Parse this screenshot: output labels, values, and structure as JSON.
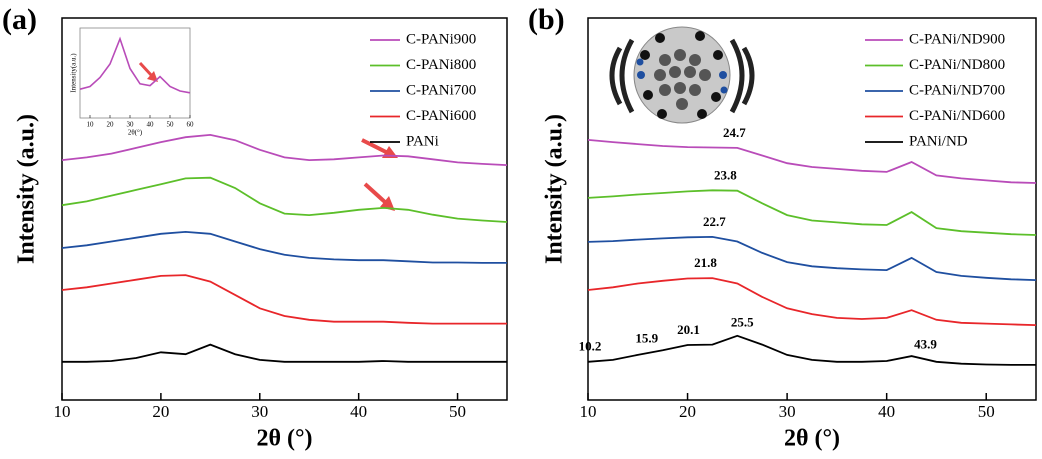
{
  "chart_data": [
    {
      "type": "line",
      "panel_label": "(a)",
      "xlabel": "2θ (°)",
      "ylabel": "Intensity (a.u.)",
      "xlim": [
        10,
        55
      ],
      "xticks": [
        10,
        20,
        30,
        40,
        50
      ],
      "ylim": [
        0,
        10
      ],
      "legend": "upper right",
      "x": [
        10,
        12.5,
        15,
        17.5,
        20,
        22.5,
        25,
        27.5,
        30,
        32.5,
        35,
        37.5,
        40,
        42.5,
        45,
        47.5,
        50,
        52.5,
        55
      ],
      "series": [
        {
          "name": "C-PANi900",
          "color": "#b94cb9",
          "values": [
            6.28,
            6.35,
            6.45,
            6.6,
            6.75,
            6.88,
            6.94,
            6.8,
            6.55,
            6.35,
            6.28,
            6.3,
            6.35,
            6.4,
            6.38,
            6.3,
            6.22,
            6.18,
            6.15
          ]
        },
        {
          "name": "C-PANi800",
          "color": "#5cbf2a",
          "values": [
            5.1,
            5.2,
            5.35,
            5.5,
            5.65,
            5.8,
            5.82,
            5.55,
            5.15,
            4.88,
            4.84,
            4.9,
            4.98,
            5.03,
            4.98,
            4.85,
            4.75,
            4.7,
            4.66
          ]
        },
        {
          "name": "C-PANi700",
          "color": "#1f4fa0",
          "values": [
            3.98,
            4.05,
            4.15,
            4.25,
            4.35,
            4.4,
            4.35,
            4.15,
            3.95,
            3.8,
            3.72,
            3.68,
            3.66,
            3.66,
            3.63,
            3.6,
            3.6,
            3.59,
            3.59
          ]
        },
        {
          "name": "C-PANi600",
          "color": "#e8262a",
          "values": [
            2.88,
            2.95,
            3.05,
            3.15,
            3.25,
            3.27,
            3.1,
            2.75,
            2.4,
            2.2,
            2.1,
            2.05,
            2.05,
            2.05,
            2.02,
            2.0,
            2.0,
            2.0,
            2.0
          ]
        },
        {
          "name": "PANi",
          "color": "#000000",
          "values": [
            1.0,
            1.0,
            1.02,
            1.1,
            1.25,
            1.2,
            1.45,
            1.2,
            1.05,
            1.0,
            1.0,
            1.0,
            1.0,
            1.02,
            1.0,
            1.0,
            1.0,
            1.0,
            1.0
          ]
        }
      ]
    },
    {
      "type": "line",
      "panel_label": "(b)",
      "xlabel": "2θ (°)",
      "ylabel": "Intensity (a.u.)",
      "xlim": [
        10,
        55
      ],
      "xticks": [
        10,
        20,
        30,
        40,
        50
      ],
      "ylim": [
        0,
        10
      ],
      "legend": "upper right",
      "x": [
        10,
        12.5,
        15,
        17.5,
        20,
        22.5,
        25,
        27.5,
        30,
        32.5,
        35,
        37.5,
        40,
        42.5,
        45,
        47.5,
        50,
        52.5,
        55
      ],
      "series": [
        {
          "name": "C-PANi/ND900",
          "color": "#b94cb9",
          "peaks": [
            24.7
          ],
          "values": [
            6.81,
            6.75,
            6.7,
            6.65,
            6.62,
            6.61,
            6.6,
            6.4,
            6.2,
            6.1,
            6.05,
            6.0,
            5.97,
            6.23,
            5.88,
            5.8,
            5.75,
            5.7,
            5.68
          ]
        },
        {
          "name": "C-PANi/ND800",
          "color": "#5cbf2a",
          "peaks": [
            23.8
          ],
          "values": [
            5.29,
            5.33,
            5.38,
            5.42,
            5.46,
            5.49,
            5.48,
            5.15,
            4.84,
            4.7,
            4.65,
            4.6,
            4.58,
            4.92,
            4.5,
            4.42,
            4.38,
            4.34,
            4.32
          ]
        },
        {
          "name": "C-PANi/ND700",
          "color": "#1f4fa0",
          "peaks": [
            22.7
          ],
          "values": [
            4.14,
            4.16,
            4.2,
            4.23,
            4.26,
            4.27,
            4.15,
            3.85,
            3.61,
            3.5,
            3.45,
            3.42,
            3.4,
            3.72,
            3.35,
            3.25,
            3.2,
            3.16,
            3.14
          ]
        },
        {
          "name": "C-PANi/ND600",
          "color": "#e8262a",
          "peaks": [
            21.8
          ],
          "values": [
            2.88,
            2.95,
            3.05,
            3.12,
            3.18,
            3.19,
            3.05,
            2.7,
            2.4,
            2.25,
            2.15,
            2.12,
            2.15,
            2.35,
            2.1,
            2.02,
            2.0,
            1.98,
            1.96
          ]
        },
        {
          "name": "PANi/ND",
          "color": "#000000",
          "peaks": [
            10.2,
            15.9,
            20.1,
            25.5,
            43.9
          ],
          "values": [
            1.0,
            1.05,
            1.18,
            1.3,
            1.44,
            1.45,
            1.68,
            1.45,
            1.18,
            1.05,
            1.0,
            1.0,
            1.02,
            1.15,
            1.0,
            0.95,
            0.93,
            0.92,
            0.92
          ]
        }
      ]
    },
    {
      "type": "line",
      "xlabel": "2θ(°)",
      "ylabel": "Intensity(a.u.)",
      "xlim": [
        5,
        60
      ],
      "xticks": [
        10,
        20,
        30,
        40,
        50,
        60
      ],
      "ylim": [
        0,
        10
      ],
      "x": [
        5,
        10,
        15,
        20,
        25,
        30,
        35,
        40,
        45,
        50,
        55,
        60
      ],
      "color": "#b94cb9",
      "values": [
        3.2,
        3.5,
        4.5,
        6.0,
        8.8,
        5.5,
        3.8,
        3.6,
        4.6,
        3.5,
        3.0,
        2.8
      ]
    }
  ]
}
